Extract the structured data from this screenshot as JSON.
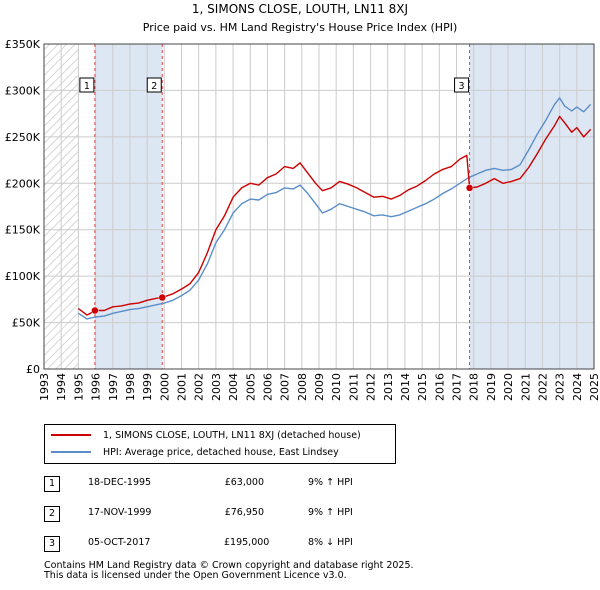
{
  "title": "1, SIMONS CLOSE, LOUTH, LN11 8XJ",
  "subtitle": "Price paid vs. HM Land Registry's House Price Index (HPI)",
  "legend": {
    "property_label": "1, SIMONS CLOSE, LOUTH, LN11 8XJ (detached house)",
    "hpi_label": "HPI: Average price, detached house, East Lindsey"
  },
  "transactions": [
    {
      "num": "1",
      "date": "18-DEC-1995",
      "price": "£63,000",
      "hpi": "9% ↑ HPI"
    },
    {
      "num": "2",
      "date": "17-NOV-1999",
      "price": "£76,950",
      "hpi": "9% ↑ HPI"
    },
    {
      "num": "3",
      "date": "05-OCT-2017",
      "price": "£195,000",
      "hpi": "8% ↓ HPI"
    }
  ],
  "footer": {
    "line1": "Contains HM Land Registry data © Crown copyright and database right 2025.",
    "line2": "This data is licensed under the Open Government Licence v3.0."
  },
  "colors": {
    "property": "#cc0000",
    "hpi": "#5b8ec9",
    "shade": "#dde6f3",
    "grid": "#cccccc",
    "vline": "#dd4444"
  },
  "chart_data": {
    "type": "line",
    "xlim": [
      1993,
      2025
    ],
    "ylim": [
      0,
      350000
    ],
    "x_ticks": [
      "1993",
      "1994",
      "1995",
      "1996",
      "1997",
      "1998",
      "1999",
      "2000",
      "2001",
      "2002",
      "2003",
      "2004",
      "2005",
      "2006",
      "2007",
      "2008",
      "2009",
      "2010",
      "2011",
      "2012",
      "2013",
      "2014",
      "2015",
      "2016",
      "2017",
      "2018",
      "2019",
      "2020",
      "2021",
      "2022",
      "2023",
      "2024",
      "2025"
    ],
    "y_ticks": [
      {
        "value": 0,
        "label": "£0"
      },
      {
        "value": 50000,
        "label": "£50K"
      },
      {
        "value": 100000,
        "label": "£100K"
      },
      {
        "value": 150000,
        "label": "£150K"
      },
      {
        "value": 200000,
        "label": "£200K"
      },
      {
        "value": 250000,
        "label": "£250K"
      },
      {
        "value": 300000,
        "label": "£300K"
      },
      {
        "value": 350000,
        "label": "£350K"
      }
    ],
    "hatch_until": 1995.0,
    "shaded_spans": [
      [
        1995.96,
        1999.88
      ],
      [
        2017.76,
        2025.0
      ]
    ],
    "sales": [
      {
        "label": "1",
        "x": 1995.96,
        "y": 63000
      },
      {
        "label": "2",
        "x": 1999.88,
        "y": 76950
      },
      {
        "label": "3",
        "x": 2017.76,
        "y": 195000
      }
    ],
    "series": [
      {
        "name": "1, SIMONS CLOSE, LOUTH, LN11 8XJ (detached house)",
        "x": [
          1995.0,
          1995.5,
          1996.0,
          1996.5,
          1997.0,
          1997.5,
          1998.0,
          1998.5,
          1999.0,
          1999.5,
          1999.88,
          2000.5,
          2001.0,
          2001.5,
          2002.0,
          2002.5,
          2003.0,
          2003.5,
          2004.0,
          2004.5,
          2005.0,
          2005.5,
          2006.0,
          2006.5,
          2007.0,
          2007.5,
          2007.9,
          2008.3,
          2008.8,
          2009.2,
          2009.7,
          2010.2,
          2010.7,
          2011.2,
          2011.7,
          2012.2,
          2012.7,
          2013.2,
          2013.7,
          2014.2,
          2014.7,
          2015.2,
          2015.7,
          2016.2,
          2016.7,
          2017.2,
          2017.6,
          2017.76,
          2018.2,
          2018.7,
          2019.2,
          2019.7,
          2020.2,
          2020.7,
          2021.2,
          2021.7,
          2022.2,
          2022.7,
          2023.0,
          2023.3,
          2023.7,
          2024.0,
          2024.4,
          2024.8
        ],
        "y": [
          65000,
          58000,
          63000,
          63000,
          67000,
          68000,
          70000,
          71000,
          74000,
          76000,
          76950,
          81000,
          86000,
          92000,
          104000,
          125000,
          150000,
          165000,
          185000,
          195000,
          200000,
          198000,
          206000,
          210000,
          218000,
          216000,
          222000,
          212000,
          200000,
          192000,
          195000,
          202000,
          199000,
          195000,
          190000,
          185000,
          186000,
          183000,
          187000,
          193000,
          197000,
          203000,
          210000,
          215000,
          218000,
          226000,
          230000,
          195000,
          196000,
          200000,
          205000,
          200000,
          202000,
          205000,
          217000,
          232000,
          248000,
          262000,
          272000,
          265000,
          255000,
          260000,
          250000,
          258000
        ]
      },
      {
        "name": "HPI: Average price, detached house, East Lindsey",
        "x": [
          1995.0,
          1995.5,
          1996.0,
          1996.5,
          1997.0,
          1997.5,
          1998.0,
          1998.5,
          1999.0,
          1999.5,
          2000.0,
          2000.5,
          2001.0,
          2001.5,
          2002.0,
          2002.5,
          2003.0,
          2003.5,
          2004.0,
          2004.5,
          2005.0,
          2005.5,
          2006.0,
          2006.5,
          2007.0,
          2007.5,
          2007.9,
          2008.3,
          2008.8,
          2009.2,
          2009.7,
          2010.2,
          2010.7,
          2011.2,
          2011.7,
          2012.2,
          2012.7,
          2013.2,
          2013.7,
          2014.2,
          2014.7,
          2015.2,
          2015.7,
          2016.2,
          2016.7,
          2017.2,
          2017.7,
          2018.2,
          2018.7,
          2019.2,
          2019.7,
          2020.2,
          2020.7,
          2021.2,
          2021.7,
          2022.2,
          2022.7,
          2023.0,
          2023.3,
          2023.7,
          2024.0,
          2024.4,
          2024.8
        ],
        "y": [
          60000,
          54000,
          56000,
          57000,
          60000,
          62000,
          64000,
          65000,
          67000,
          69000,
          71000,
          74000,
          79000,
          85000,
          96000,
          113000,
          136000,
          150000,
          168000,
          178000,
          183000,
          182000,
          188000,
          190000,
          195000,
          194000,
          198000,
          190000,
          178000,
          168000,
          172000,
          178000,
          175000,
          172000,
          169000,
          165000,
          166000,
          164000,
          166000,
          170000,
          174000,
          178000,
          183000,
          189000,
          194000,
          200000,
          206000,
          210000,
          214000,
          216000,
          214000,
          215000,
          220000,
          236000,
          253000,
          268000,
          285000,
          292000,
          283000,
          278000,
          282000,
          277000,
          285000
        ]
      }
    ]
  }
}
